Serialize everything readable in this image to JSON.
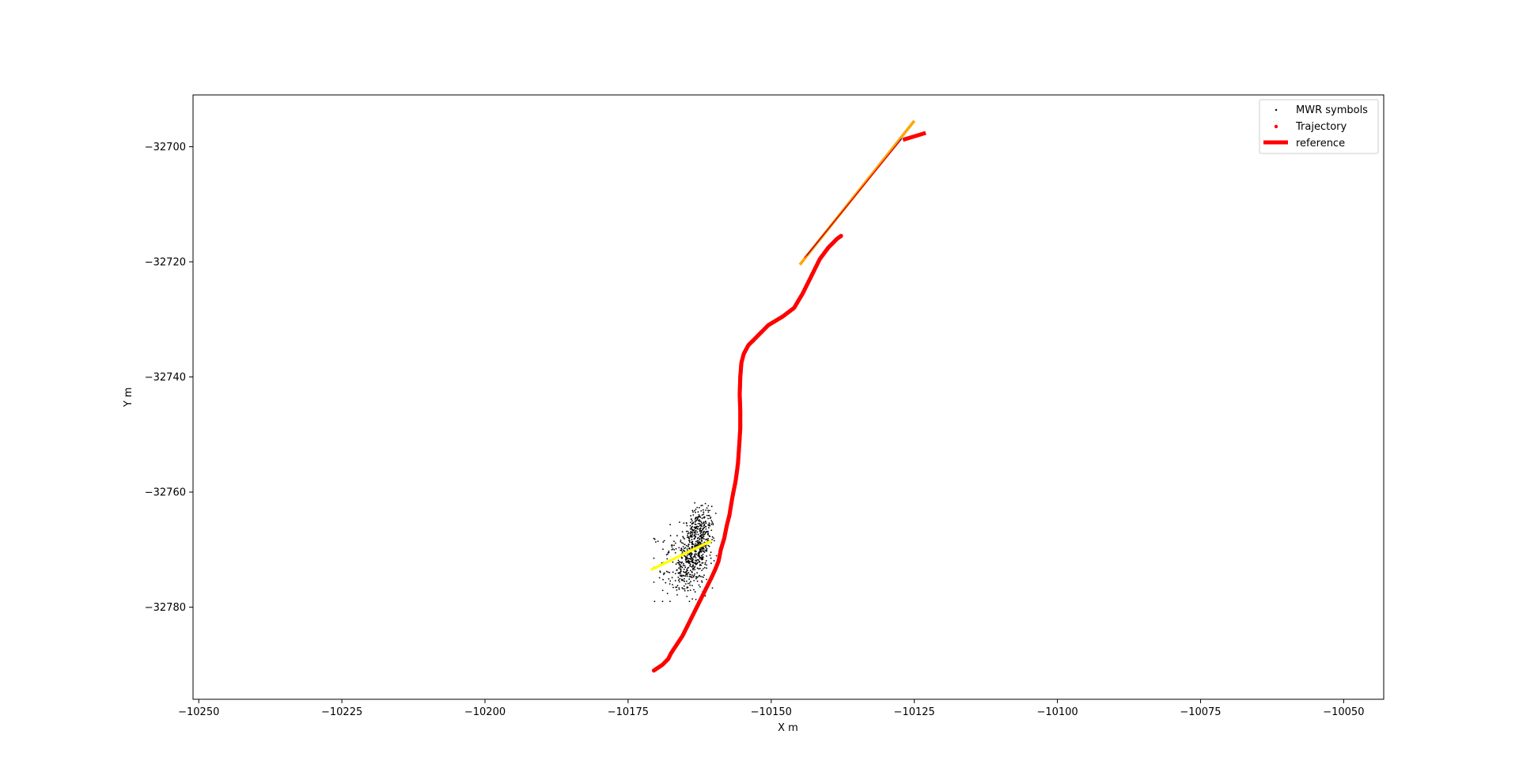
{
  "chart_data": {
    "type": "scatter",
    "title": "",
    "xlabel": "X  m",
    "ylabel": "Y  m",
    "xlim": [
      -10251,
      -10043
    ],
    "ylim": [
      -32796,
      -32691
    ],
    "x_ticks": [
      -10250,
      -10225,
      -10200,
      -10175,
      -10150,
      -10125,
      -10100,
      -10075,
      -10050
    ],
    "y_ticks": [
      -32700,
      -32720,
      -32740,
      -32760,
      -32780
    ],
    "grid": false,
    "legend_position": "top-right",
    "legend": [
      {
        "label": "MWR symbols",
        "marker": "dot",
        "color": "#000000"
      },
      {
        "label": "Trajectory",
        "marker": "dot",
        "color": "#ff0000"
      },
      {
        "label": "reference",
        "marker": "line",
        "color": "#ff0000"
      }
    ],
    "series": [
      {
        "name": "Trajectory",
        "color": "#ff0000",
        "style": "dense-dots",
        "x": [
          -10170.5,
          -10169.0,
          -10168.0,
          -10167.5,
          -10166.5,
          -10165.5,
          -10164.5,
          -10163.5,
          -10162.5,
          -10161.5,
          -10160.5,
          -10159.8,
          -10159.2,
          -10158.8,
          -10158.2,
          -10157.8,
          -10157.3,
          -10156.8,
          -10156.2,
          -10155.8,
          -10155.6,
          -10155.4,
          -10155.4,
          -10155.5,
          -10155.4,
          -10155.2,
          -10154.8,
          -10154.0,
          -10152.5,
          -10150.5,
          -10148.0,
          -10146.0,
          -10144.5,
          -10143.0,
          -10141.5,
          -10140.0,
          -10138.5,
          -10137.8
        ],
        "y": [
          -32791.0,
          -32790.0,
          -32789.0,
          -32788.0,
          -32786.5,
          -32785.0,
          -32783.0,
          -32781.0,
          -32779.0,
          -32777.0,
          -32775.0,
          -32773.5,
          -32772.0,
          -32770.0,
          -32768.0,
          -32766.0,
          -32764.0,
          -32761.0,
          -32758.0,
          -32755.0,
          -32752.0,
          -32749.0,
          -32746.0,
          -32743.0,
          -32740.0,
          -32737.5,
          -32736.0,
          -32734.5,
          -32733.0,
          -32731.0,
          -32729.5,
          -32728.0,
          -32725.5,
          -32722.5,
          -32719.5,
          -32717.5,
          -32716.0,
          -32715.5
        ]
      },
      {
        "name": "reference",
        "color": "#ff0000",
        "style": "thick-line",
        "x": [
          -10127.0,
          -10123.0
        ],
        "y": [
          -32698.8,
          -32697.6
        ]
      },
      {
        "name": "",
        "color": "#ffa500",
        "style": "line",
        "x": [
          -10145.0,
          -10125.0
        ],
        "y": [
          -32720.5,
          -32695.5
        ]
      },
      {
        "name": "",
        "color": "#0000aa",
        "style": "thin-line",
        "x": [
          -10143.8,
          -10127.2
        ],
        "y": [
          -32718.9,
          -32698.6
        ]
      },
      {
        "name": "",
        "color": "#ff0000",
        "style": "thin-line",
        "x": [
          -10144.2,
          -10127.5
        ],
        "y": [
          -32719.3,
          -32699.0
        ]
      },
      {
        "name": "",
        "color": "#ffff00",
        "style": "line",
        "x": [
          -10171.0,
          -10160.5
        ],
        "y": [
          -32773.5,
          -32768.5
        ]
      }
    ],
    "mwr_symbols": {
      "name": "MWR symbols",
      "color": "#000000",
      "count": 750,
      "x_range": [
        -10170.5,
        -10159.5
      ],
      "y_range": [
        -32779.0,
        -32761.0
      ],
      "center": [
        -10163.2,
        -32770.5
      ]
    }
  }
}
